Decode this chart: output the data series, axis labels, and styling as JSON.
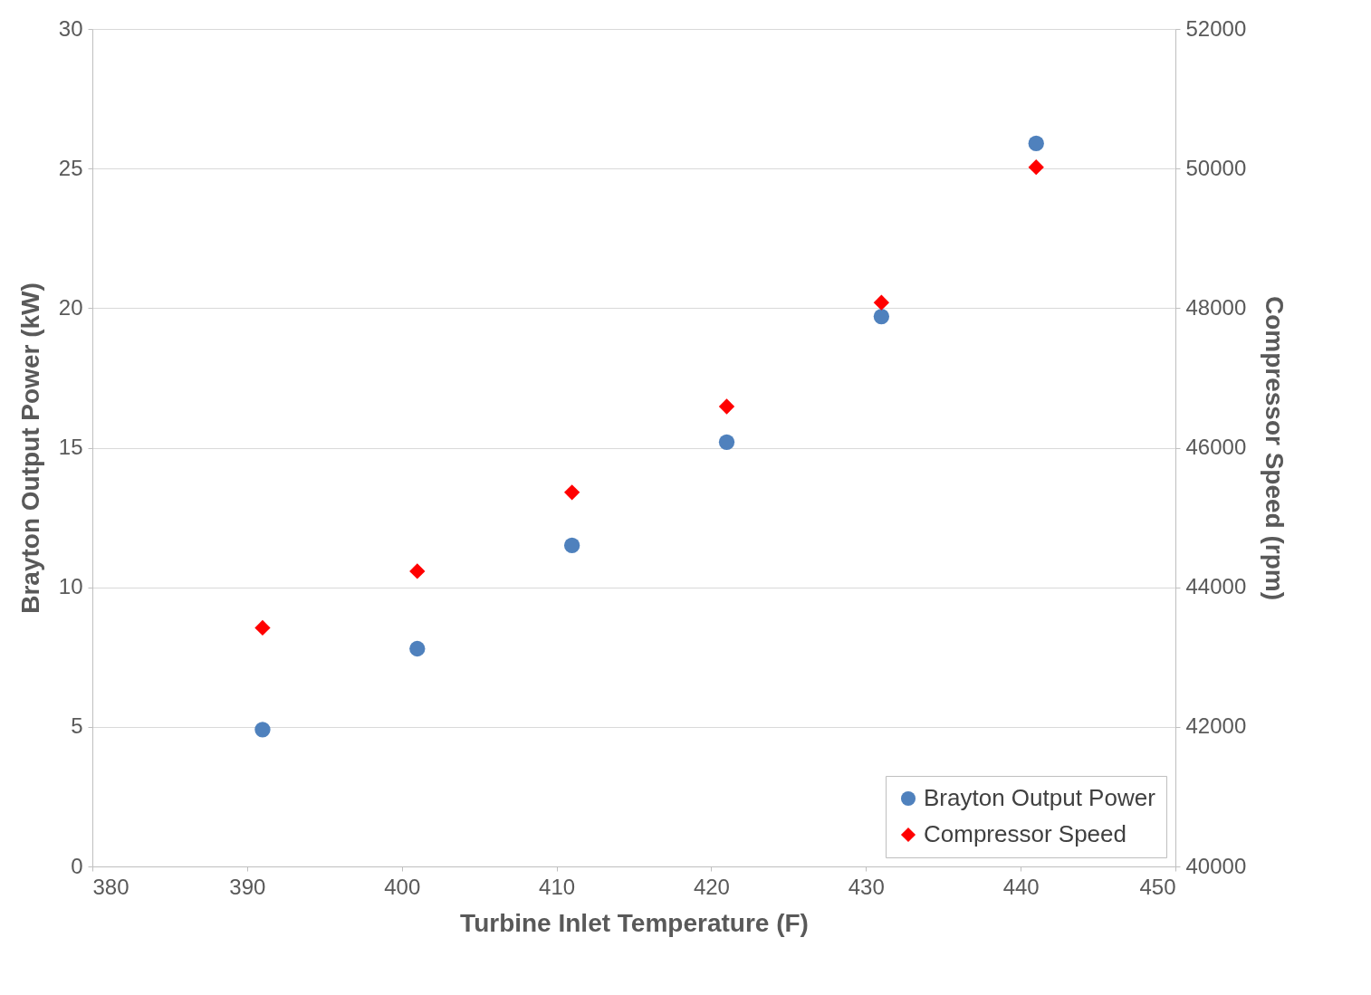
{
  "chart_data": {
    "type": "scatter",
    "xlabel": "Turbine Inlet Temperature (F)",
    "ylabel": "Brayton Output Power (kW)",
    "y2label": "Compressor Speed (rpm)",
    "x": [
      391,
      401,
      411,
      421,
      431,
      441
    ],
    "series": [
      {
        "name": "Brayton Output Power",
        "color": "#4f81bd",
        "marker": "circle",
        "values": [
          4.9,
          7.8,
          11.5,
          15.2,
          19.7,
          25.9
        ]
      },
      {
        "name": "Compressor Speed",
        "color": "#ff0000",
        "marker": "diamond",
        "axis": "y2",
        "values": [
          43420,
          44230,
          45360,
          46590,
          48080,
          50020
        ]
      }
    ],
    "xlim": [
      380,
      450
    ],
    "xticks": [
      380,
      390,
      400,
      410,
      420,
      430,
      440,
      450
    ],
    "ylim": [
      0,
      30
    ],
    "yticks": [
      0,
      5,
      10,
      15,
      20,
      25,
      30
    ],
    "y2lim": [
      40000,
      52000
    ],
    "y2ticks": [
      40000,
      42000,
      44000,
      46000,
      48000,
      50000,
      52000
    ],
    "grid": "y",
    "legend": "bottom right"
  }
}
